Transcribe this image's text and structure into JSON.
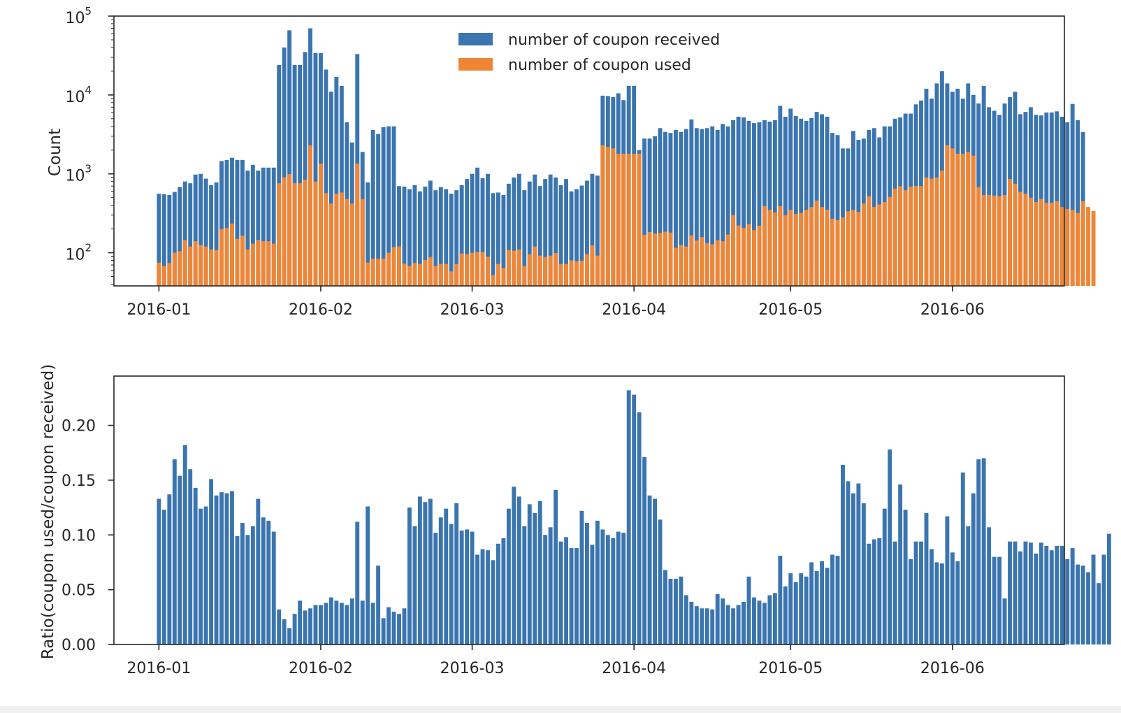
{
  "chart_data": [
    {
      "type": "bar",
      "scale": "log",
      "ylabel": "Count",
      "ylim": [
        38,
        100000
      ],
      "y_ticks": [
        100,
        1000,
        10000,
        100000
      ],
      "y_tick_labels": [
        {
          "base": "10",
          "exp": "2"
        },
        {
          "base": "10",
          "exp": "3"
        },
        {
          "base": "10",
          "exp": "4"
        },
        {
          "base": "10",
          "exp": "5"
        }
      ],
      "x_tick_dates": [
        "2016-01-01",
        "2016-02-01",
        "2016-03-01",
        "2016-04-01",
        "2016-05-01",
        "2016-06-01"
      ],
      "x_tick_labels": [
        "2016-01",
        "2016-02",
        "2016-03",
        "2016-04",
        "2016-05",
        "2016-06"
      ],
      "x_start": "2016-01-01",
      "legend": {
        "position": "top-center",
        "entries": [
          {
            "label": "number of coupon received",
            "color": "#3a75b0"
          },
          {
            "label": "number of coupon used",
            "color": "#ef8636"
          }
        ]
      },
      "series": [
        {
          "name": "number of coupon received",
          "color": "#3a75b0",
          "values": [
            560,
            550,
            540,
            590,
            680,
            800,
            760,
            980,
            1000,
            870,
            720,
            780,
            1450,
            1500,
            1600,
            1500,
            1500,
            1100,
            1300,
            1100,
            1200,
            1200,
            1200,
            24000,
            40000,
            66000,
            24000,
            24000,
            35000,
            70000,
            34000,
            34000,
            21000,
            11000,
            17000,
            13000,
            4500,
            2500,
            33000,
            1900,
            780,
            3600,
            3200,
            3900,
            4000,
            4000,
            700,
            690,
            640,
            720,
            600,
            690,
            820,
            620,
            680,
            640,
            560,
            620,
            720,
            860,
            1000,
            1200,
            880,
            1000,
            570,
            580,
            540,
            750,
            900,
            1000,
            620,
            800,
            980,
            700,
            860,
            980,
            900,
            720,
            860,
            600,
            640,
            710,
            820,
            1000,
            950,
            9800,
            9700,
            9400,
            10500,
            8600,
            13000,
            13000,
            2000,
            2800,
            2800,
            3000,
            3800,
            3400,
            3300,
            3600,
            3400,
            3700,
            4900,
            3800,
            3700,
            3800,
            4000,
            3600,
            4300,
            4000,
            4800,
            5300,
            5200,
            4700,
            4400,
            4500,
            4800,
            4600,
            4800,
            7300,
            5300,
            6700,
            5400,
            5000,
            4700,
            5100,
            6100,
            5700,
            5300,
            3300,
            3100,
            2100,
            2100,
            3500,
            2700,
            2800,
            3600,
            3800,
            2900,
            4000,
            4000,
            5000,
            5200,
            5800,
            5800,
            7600,
            8500,
            12000,
            9000,
            14000,
            20000,
            14000,
            11000,
            12000,
            9000,
            14000,
            10000,
            7800,
            13000,
            7000,
            6300,
            5600,
            7800,
            9400,
            11000,
            5700,
            6100,
            7000,
            5600,
            5500,
            6000,
            6000,
            6200,
            5300,
            4500,
            7700,
            4800,
            3400
          ]
        },
        {
          "name": "number of coupon used",
          "color": "#ef8636",
          "values": [
            75,
            68,
            74,
            100,
            105,
            145,
            120,
            140,
            125,
            120,
            110,
            108,
            200,
            205,
            235,
            150,
            165,
            110,
            130,
            145,
            140,
            140,
            130,
            760,
            900,
            990,
            760,
            760,
            840,
            2300,
            800,
            1350,
            570,
            420,
            560,
            580,
            480,
            420,
            1350,
            480,
            75,
            84,
            84,
            84,
            100,
            118,
            120,
            73,
            68,
            74,
            72,
            81,
            88,
            68,
            72,
            72,
            58,
            72,
            98,
            96,
            100,
            102,
            102,
            89,
            52,
            72,
            64,
            108,
            106,
            110,
            68,
            96,
            120,
            92,
            88,
            92,
            99,
            72,
            72,
            80,
            78,
            79,
            96,
            124,
            92,
            2300,
            2200,
            2100,
            1800,
            1800,
            1800,
            1800,
            1800,
            169,
            183,
            175,
            178,
            185,
            180,
            116,
            125,
            120,
            166,
            143,
            158,
            132,
            128,
            145,
            140,
            170,
            300,
            222,
            206,
            230,
            194,
            220,
            390,
            350,
            325,
            390,
            300,
            350,
            310,
            320,
            350,
            380,
            460,
            380,
            350,
            270,
            260,
            280,
            335,
            350,
            330,
            420,
            520,
            380,
            410,
            440,
            510,
            650,
            700,
            620,
            690,
            700,
            700,
            900,
            870,
            900,
            1100,
            2300,
            2100,
            1800,
            1800,
            1900,
            1700,
            680,
            540,
            540,
            530,
            520,
            540,
            860,
            750,
            590,
            560,
            500,
            440,
            480,
            430,
            430,
            450,
            380,
            360,
            350,
            320,
            450,
            380,
            340
          ]
        }
      ]
    },
    {
      "type": "bar",
      "ylabel": "Ratio(coupon used/coupon received)",
      "ylim": [
        0,
        0.245
      ],
      "y_ticks": [
        0.0,
        0.05,
        0.1,
        0.15,
        0.2
      ],
      "y_tick_labels": [
        "0.00",
        "0.05",
        "0.10",
        "0.15",
        "0.20"
      ],
      "x_tick_dates": [
        "2016-01-01",
        "2016-02-01",
        "2016-03-01",
        "2016-04-01",
        "2016-05-01",
        "2016-06-01"
      ],
      "x_tick_labels": [
        "2016-01",
        "2016-02",
        "2016-03",
        "2016-04",
        "2016-05",
        "2016-06"
      ],
      "x_start": "2016-01-01",
      "color": "#3a75b0",
      "values": [
        0.133,
        0.123,
        0.137,
        0.169,
        0.154,
        0.182,
        0.16,
        0.143,
        0.124,
        0.126,
        0.151,
        0.136,
        0.139,
        0.138,
        0.14,
        0.099,
        0.111,
        0.1,
        0.108,
        0.133,
        0.116,
        0.113,
        0.103,
        0.032,
        0.023,
        0.015,
        0.028,
        0.04,
        0.031,
        0.033,
        0.036,
        0.036,
        0.038,
        0.043,
        0.04,
        0.038,
        0.036,
        0.042,
        0.112,
        0.04,
        0.126,
        0.038,
        0.072,
        0.024,
        0.034,
        0.03,
        0.028,
        0.033,
        0.125,
        0.108,
        0.135,
        0.13,
        0.133,
        0.102,
        0.116,
        0.124,
        0.11,
        0.129,
        0.104,
        0.105,
        0.103,
        0.082,
        0.087,
        0.086,
        0.077,
        0.092,
        0.097,
        0.124,
        0.144,
        0.135,
        0.108,
        0.128,
        0.12,
        0.131,
        0.1,
        0.107,
        0.141,
        0.094,
        0.098,
        0.088,
        0.088,
        0.122,
        0.111,
        0.091,
        0.113,
        0.105,
        0.1,
        0.097,
        0.103,
        0.102,
        0.232,
        0.228,
        0.212,
        0.171,
        0.136,
        0.133,
        0.114,
        0.068,
        0.06,
        0.06,
        0.062,
        0.045,
        0.039,
        0.035,
        0.033,
        0.033,
        0.032,
        0.046,
        0.042,
        0.036,
        0.033,
        0.036,
        0.039,
        0.062,
        0.043,
        0.04,
        0.038,
        0.045,
        0.047,
        0.081,
        0.053,
        0.065,
        0.057,
        0.065,
        0.062,
        0.075,
        0.067,
        0.076,
        0.07,
        0.082,
        0.081,
        0.164,
        0.149,
        0.138,
        0.147,
        0.129,
        0.092,
        0.096,
        0.097,
        0.124,
        0.178,
        0.094,
        0.146,
        0.123,
        0.078,
        0.094,
        0.094,
        0.12,
        0.087,
        0.075,
        0.074,
        0.117,
        0.084,
        0.076,
        0.157,
        0.108,
        0.138,
        0.169,
        0.17,
        0.107,
        0.08,
        0.08,
        0.042,
        0.094,
        0.094,
        0.085,
        0.094,
        0.093,
        0.083,
        0.093,
        0.09,
        0.086,
        0.09,
        0.09,
        0.078,
        0.088,
        0.073,
        0.072,
        0.066,
        0.082,
        0.056,
        0.082,
        0.101
      ]
    }
  ]
}
